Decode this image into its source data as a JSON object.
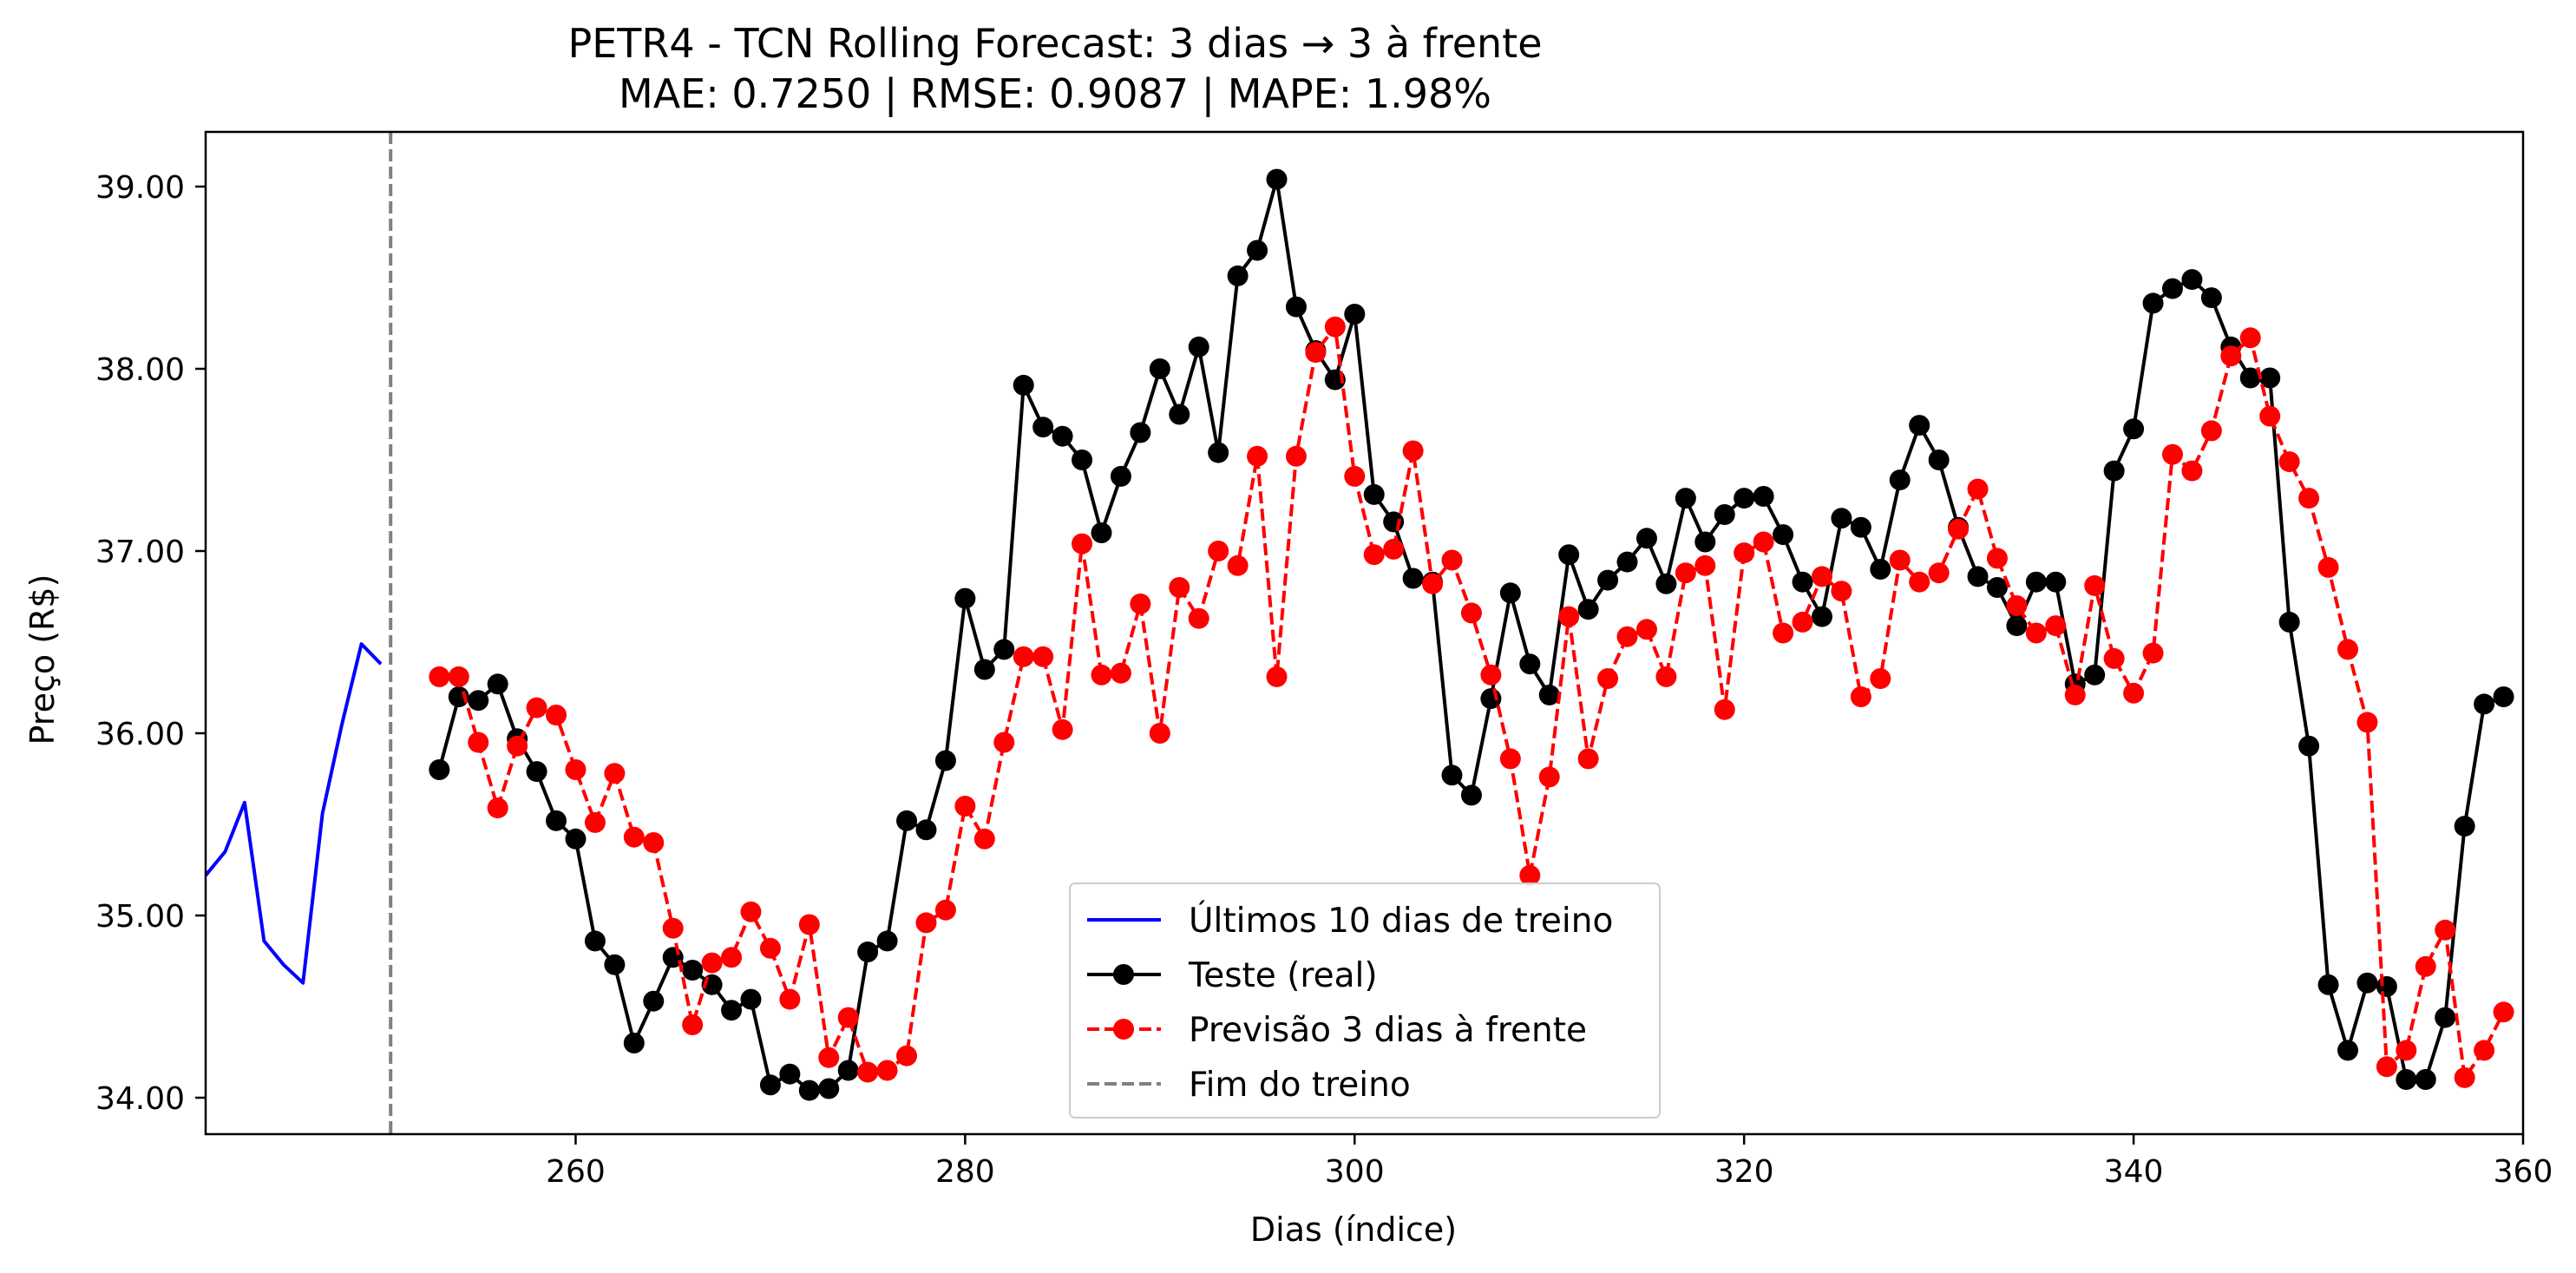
{
  "chart_data": {
    "type": "line",
    "title": "PETR4 - TCN Rolling Forecast: 3 dias → 3 à frente",
    "subtitle": "MAE: 0.7250 | RMSE: 0.9087 | MAPE: 1.98%",
    "xlabel": "Dias (índice)",
    "ylabel": "Preço (R$)",
    "xlim": [
      241,
      360
    ],
    "ylim": [
      33.8,
      39.3
    ],
    "x_ticks": [
      260,
      280,
      300,
      320,
      340,
      360
    ],
    "y_ticks": [
      "34.00",
      "35.00",
      "36.00",
      "37.00",
      "38.00",
      "39.00"
    ],
    "grid": false,
    "legend_position": "lower-center",
    "vline": {
      "x": 250.5,
      "name": "Fim do treino",
      "color": "#808080"
    },
    "series": [
      {
        "name": "Últimos 10 dias de treino",
        "color": "#0000ff",
        "style": "solid",
        "marker": "none",
        "x": [
          241,
          242,
          243,
          244,
          245,
          246,
          247,
          248,
          249,
          250
        ],
        "y": [
          35.22,
          35.35,
          35.62,
          34.86,
          34.73,
          34.63,
          35.56,
          36.05,
          36.49,
          36.38
        ]
      },
      {
        "name": "Teste (real)",
        "color": "#000000",
        "style": "solid",
        "marker": "circle",
        "x": [
          253,
          254,
          255,
          256,
          257,
          258,
          259,
          260,
          261,
          262,
          263,
          264,
          265,
          266,
          267,
          268,
          269,
          270,
          271,
          272,
          273,
          274,
          275,
          276,
          277,
          278,
          279,
          280,
          281,
          282,
          283,
          284,
          285,
          286,
          287,
          288,
          289,
          290,
          291,
          292,
          293,
          294,
          295,
          296,
          297,
          298,
          299,
          300,
          301,
          302,
          303,
          304,
          305,
          306,
          307,
          308,
          309,
          310,
          311,
          312,
          313,
          314,
          315,
          316,
          317,
          318,
          319,
          320,
          321,
          322,
          323,
          324,
          325,
          326,
          327,
          328,
          329,
          330,
          331,
          332,
          333,
          334,
          335,
          336,
          337,
          338,
          339,
          340,
          341,
          342,
          343,
          344,
          345,
          346,
          347,
          348,
          349,
          350,
          351,
          352,
          353,
          354,
          355,
          356,
          357,
          358,
          359
        ],
        "y": [
          35.8,
          36.2,
          36.18,
          36.27,
          35.97,
          35.79,
          35.52,
          35.42,
          34.86,
          34.73,
          34.3,
          34.53,
          34.77,
          34.7,
          34.62,
          34.48,
          34.54,
          34.07,
          34.13,
          34.04,
          34.05,
          34.15,
          34.8,
          34.86,
          35.52,
          35.47,
          35.85,
          36.74,
          36.35,
          36.46,
          37.91,
          37.68,
          37.63,
          37.5,
          37.1,
          37.41,
          37.65,
          38.0,
          37.75,
          38.12,
          37.54,
          38.51,
          38.65,
          39.04,
          38.34,
          38.1,
          37.94,
          38.3,
          37.31,
          37.16,
          36.85,
          36.83,
          35.77,
          35.66,
          36.19,
          36.77,
          36.38,
          36.21,
          36.98,
          36.68,
          36.84,
          36.94,
          37.07,
          36.82,
          37.29,
          37.05,
          37.2,
          37.29,
          37.3,
          37.09,
          36.83,
          36.64,
          37.18,
          37.13,
          36.9,
          37.39,
          37.69,
          37.5,
          37.13,
          36.86,
          36.8,
          36.59,
          36.83,
          36.83,
          36.27,
          36.32,
          37.44,
          37.67,
          38.36,
          38.44,
          38.49,
          38.39,
          38.12,
          37.95,
          37.95,
          36.61,
          35.93,
          34.62,
          34.26,
          34.63,
          34.61,
          34.1,
          34.1,
          34.44,
          35.49,
          36.16,
          36.2
        ]
      },
      {
        "name": "Previsão 3 dias à frente",
        "color": "#ff0000",
        "style": "dashed",
        "marker": "circle",
        "x": [
          253,
          254,
          255,
          256,
          257,
          258,
          259,
          260,
          261,
          262,
          263,
          264,
          265,
          266,
          267,
          268,
          269,
          270,
          271,
          272,
          273,
          274,
          275,
          276,
          277,
          278,
          279,
          280,
          281,
          282,
          283,
          284,
          285,
          286,
          287,
          288,
          289,
          290,
          291,
          292,
          293,
          294,
          295,
          296,
          297,
          298,
          299,
          300,
          301,
          302,
          303,
          304,
          305,
          306,
          307,
          308,
          309,
          310,
          311,
          312,
          313,
          314,
          315,
          316,
          317,
          318,
          319,
          320,
          321,
          322,
          323,
          324,
          325,
          326,
          327,
          328,
          329,
          330,
          331,
          332,
          333,
          334,
          335,
          336,
          337,
          338,
          339,
          340,
          341,
          342,
          343,
          344,
          345,
          346,
          347,
          348,
          349,
          350,
          351,
          352,
          353,
          354,
          355,
          356,
          357,
          358,
          359
        ],
        "y": [
          36.31,
          36.31,
          35.95,
          35.59,
          35.93,
          36.14,
          36.1,
          35.8,
          35.51,
          35.78,
          35.43,
          35.4,
          34.93,
          34.4,
          34.74,
          34.77,
          35.02,
          34.82,
          34.54,
          34.95,
          34.22,
          34.44,
          34.14,
          34.15,
          34.23,
          34.96,
          35.03,
          35.6,
          35.42,
          35.95,
          36.42,
          36.42,
          36.02,
          37.04,
          36.32,
          36.33,
          36.71,
          36.0,
          36.8,
          36.63,
          37.0,
          36.92,
          37.52,
          36.31,
          37.52,
          38.09,
          38.23,
          37.41,
          36.98,
          37.01,
          37.55,
          36.82,
          36.95,
          36.66,
          36.32,
          35.86,
          35.22,
          35.76,
          36.64,
          35.86,
          36.3,
          36.53,
          36.57,
          36.31,
          36.88,
          36.92,
          36.13,
          36.99,
          37.05,
          36.55,
          36.61,
          36.86,
          36.78,
          36.2,
          36.3,
          36.95,
          36.83,
          36.88,
          37.12,
          37.34,
          36.96,
          36.7,
          36.55,
          36.59,
          36.21,
          36.81,
          36.41,
          36.22,
          36.44,
          37.53,
          37.44,
          37.66,
          38.07,
          38.17,
          37.74,
          37.49,
          37.29,
          36.91,
          36.46,
          36.06,
          34.17,
          34.26,
          34.72,
          34.92,
          34.11,
          34.26,
          34.47
        ]
      }
    ]
  }
}
